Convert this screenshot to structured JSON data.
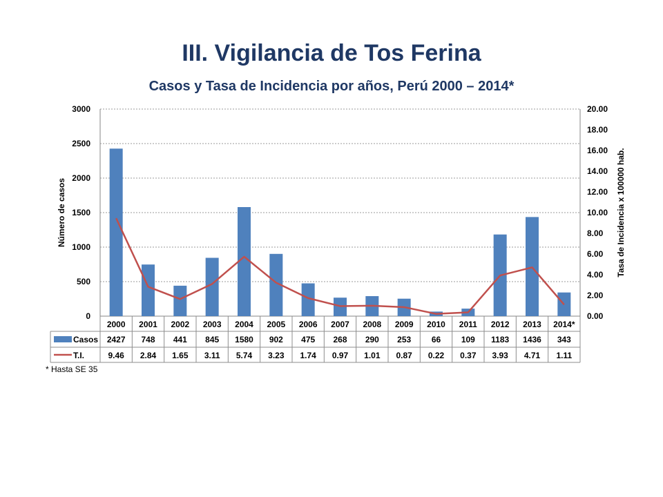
{
  "title": "III. Vigilancia de Tos Ferina",
  "subtitle": "Casos y Tasa de Incidencia por años, Perú 2000 – 2014*",
  "footnote": "* Hasta SE 35",
  "chart_data": {
    "type": "bar",
    "categories": [
      "2000",
      "2001",
      "2002",
      "2003",
      "2004",
      "2005",
      "2006",
      "2007",
      "2008",
      "2009",
      "2010",
      "2011",
      "2012",
      "2013",
      "2014*"
    ],
    "series": [
      {
        "name": "Casos",
        "type": "bar",
        "axis": "left",
        "color": "#4f81bd",
        "values": [
          2427,
          748,
          441,
          845,
          1580,
          902,
          475,
          268,
          290,
          253,
          66,
          109,
          1183,
          1436,
          343
        ]
      },
      {
        "name": "T.I.",
        "type": "line",
        "axis": "right",
        "color": "#c0504d",
        "values": [
          9.46,
          2.84,
          1.65,
          3.11,
          5.74,
          3.23,
          1.74,
          0.97,
          1.01,
          0.87,
          0.22,
          0.37,
          3.93,
          4.71,
          1.11
        ]
      }
    ],
    "ylabel": "Número de casos",
    "y2label": "Tasa de Incidencia x 100000 hab.",
    "ylim": [
      0,
      3000
    ],
    "y2lim": [
      0,
      20
    ],
    "yticks": [
      "0",
      "500",
      "1000",
      "1500",
      "2000",
      "2500",
      "3000"
    ],
    "y2ticks": [
      "0.00",
      "2.00",
      "4.00",
      "6.00",
      "8.00",
      "10.00",
      "12.00",
      "14.00",
      "16.00",
      "18.00",
      "20.00"
    ],
    "grid": true,
    "data_table": true
  }
}
